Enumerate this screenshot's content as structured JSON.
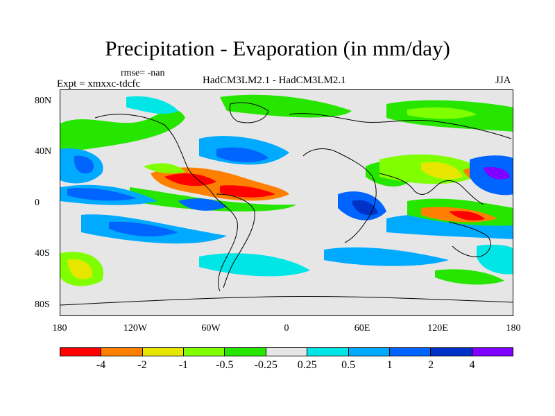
{
  "title": "Precipitation - Evaporation (in mm/day)",
  "rmse": "rmse= -nan",
  "expt": "Expt = xmxxc-tdcfc",
  "model": "HadCM3LM2.1 - HadCM3LM2.1",
  "season": "JJA",
  "lat_ticks": [
    "80N",
    "40N",
    "0",
    "40S",
    "80S"
  ],
  "lon_ticks": [
    "180",
    "120W",
    "60W",
    "0",
    "60E",
    "120E",
    "180"
  ],
  "colorbar": {
    "colors": [
      "#ff0000",
      "#ff8000",
      "#e6e600",
      "#80ff00",
      "#26e600",
      "#e6e6e6",
      "#00e6e6",
      "#00aaff",
      "#0064ff",
      "#0032c8",
      "#7f00ff"
    ],
    "labels": [
      "-4",
      "-2",
      "-1",
      "-0.5",
      "-0.25",
      "0.25",
      "0.5",
      "1",
      "2",
      "4"
    ]
  }
}
